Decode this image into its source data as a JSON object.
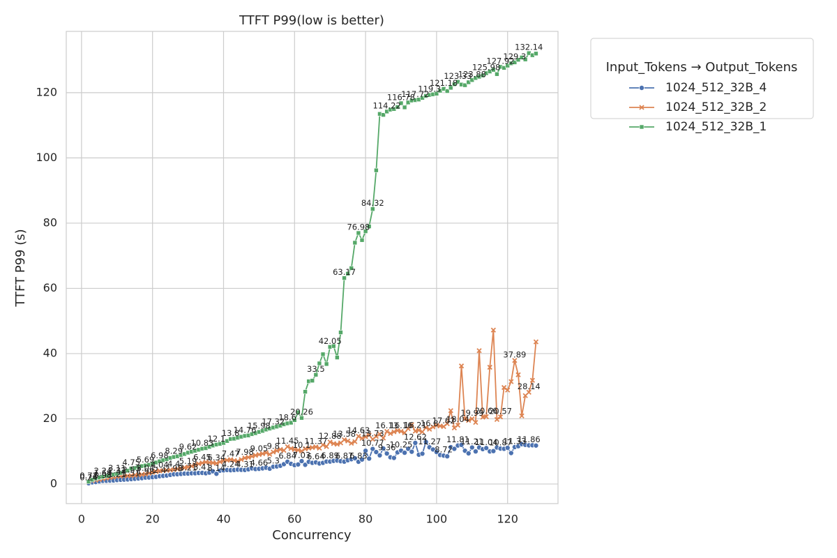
{
  "chart_data": {
    "type": "line",
    "title": "TTFT P99(low is better)",
    "x_label": "Concurrency",
    "y_label": "TTFT P99 (s)",
    "legend_title": "Input_Tokens → Output_Tokens",
    "legend_position": "outside upper right",
    "grid": true,
    "xlim": [
      -4.3,
      134.2
    ],
    "xticks": [
      0,
      20,
      40,
      60,
      80,
      100,
      120
    ],
    "ylim": [
      -6,
      138.8
    ],
    "yticks": [
      0,
      20,
      40,
      60,
      80,
      100,
      120
    ],
    "x": [
      2,
      3,
      4,
      5,
      6,
      7,
      8,
      9,
      10,
      11,
      12,
      13,
      14,
      15,
      16,
      17,
      18,
      19,
      20,
      21,
      22,
      23,
      24,
      25,
      26,
      27,
      28,
      29,
      30,
      31,
      32,
      33,
      34,
      35,
      36,
      37,
      38,
      39,
      40,
      41,
      42,
      43,
      44,
      45,
      46,
      47,
      48,
      49,
      50,
      51,
      52,
      53,
      54,
      55,
      56,
      57,
      58,
      59,
      60,
      61,
      62,
      63,
      64,
      65,
      66,
      67,
      68,
      69,
      70,
      71,
      72,
      73,
      74,
      75,
      76,
      77,
      78,
      79,
      80,
      81,
      82,
      83,
      84,
      85,
      86,
      87,
      88,
      89,
      90,
      91,
      92,
      93,
      94,
      95,
      96,
      97,
      98,
      99,
      100,
      101,
      102,
      103,
      104,
      105,
      106,
      107,
      108,
      109,
      110,
      111,
      112,
      113,
      114,
      115,
      116,
      117,
      118,
      119,
      120,
      121,
      122,
      123,
      124,
      125,
      126,
      127,
      128
    ],
    "series": [
      {
        "name": "1024_512_32B_4",
        "color": "#4c72b0",
        "marker": "circle",
        "values": [
          0.24,
          0.5,
          0.6,
          0.8,
          0.98,
          1.0,
          1.05,
          1.1,
          1.21,
          1.3,
          1.35,
          1.4,
          1.51,
          1.6,
          1.7,
          1.8,
          1.98,
          2.0,
          2.1,
          2.2,
          2.4,
          2.5,
          2.6,
          2.8,
          2.98,
          3.0,
          3.1,
          3.2,
          3.21,
          3.3,
          3.3,
          3.4,
          3.41,
          3.3,
          3.5,
          3.9,
          3.14,
          4.1,
          4.2,
          4.3,
          4.24,
          4.3,
          4.4,
          4.35,
          4.31,
          4.5,
          4.8,
          4.6,
          4.66,
          4.8,
          5.0,
          4.7,
          5.3,
          5.4,
          5.6,
          6.1,
          6.84,
          6.2,
          5.8,
          6.0,
          7.03,
          5.9,
          6.8,
          6.5,
          6.64,
          6.3,
          6.5,
          6.9,
          6.89,
          7.1,
          7.2,
          7.0,
          6.87,
          7.3,
          7.6,
          7.9,
          6.83,
          7.5,
          10.2,
          7.8,
          10.77,
          9.8,
          8.8,
          10.9,
          9.36,
          8.2,
          8.0,
          9.7,
          10.25,
          9.6,
          10.8,
          9.9,
          12.62,
          9.0,
          9.3,
          12.9,
          11.27,
          10.6,
          9.8,
          8.9,
          8.72,
          8.5,
          11.3,
          10.8,
          11.81,
          12.0,
          10.2,
          9.4,
          11.21,
          10.0,
          11.2,
          10.7,
          11.04,
          10.0,
          10.1,
          11.2,
          10.87,
          10.8,
          11.1,
          9.5,
          11.33,
          11.6,
          12.2,
          12.0,
          11.86,
          11.9,
          11.8
        ],
        "value_labels": [
          "0.24",
          null,
          null,
          null,
          "0.98",
          null,
          null,
          null,
          "1.21",
          null,
          null,
          null,
          "1.51",
          null,
          null,
          null,
          "1.98",
          null,
          null,
          null,
          "2.4",
          null,
          null,
          null,
          "2.98",
          null,
          null,
          null,
          "3.21",
          null,
          null,
          null,
          "3.41",
          null,
          null,
          null,
          "3.14",
          null,
          null,
          null,
          "4.24",
          null,
          null,
          null,
          "4.31",
          null,
          null,
          null,
          "4.66",
          null,
          null,
          null,
          "5.3",
          null,
          null,
          null,
          "6.84",
          null,
          null,
          null,
          "7.03",
          null,
          null,
          null,
          "6.64",
          null,
          null,
          null,
          "6.89",
          null,
          null,
          null,
          "6.87",
          null,
          null,
          null,
          "6.83",
          null,
          null,
          null,
          "10.77",
          null,
          null,
          null,
          "9.36",
          null,
          null,
          null,
          "10.25",
          null,
          null,
          null,
          "12.62",
          null,
          null,
          null,
          "11.27",
          null,
          null,
          null,
          "8.72",
          null,
          null,
          null,
          "11.81",
          null,
          null,
          null,
          "11.21",
          null,
          null,
          null,
          "11.04",
          null,
          null,
          null,
          "10.87",
          null,
          null,
          null,
          "11.33",
          null,
          null,
          null,
          "11.86",
          null,
          null
        ]
      },
      {
        "name": "1024_512_32B_2",
        "color": "#dd8452",
        "marker": "x",
        "values": [
          0.72,
          1.0,
          1.2,
          1.4,
          1.64,
          1.8,
          2.0,
          2.1,
          2.32,
          2.4,
          2.5,
          2.5,
          2.57,
          2.7,
          2.8,
          2.9,
          3.04,
          3.3,
          3.6,
          3.8,
          4.04,
          4.1,
          4.2,
          4.3,
          4.4,
          4.6,
          4.8,
          5.0,
          5.19,
          5.5,
          5.9,
          6.2,
          6.45,
          6.7,
          6.6,
          6.5,
          6.34,
          6.8,
          7.1,
          7.3,
          7.47,
          7.2,
          7.0,
          7.5,
          7.98,
          8.2,
          8.5,
          8.8,
          9.05,
          9.3,
          9.6,
          9.1,
          9.8,
          10.2,
          10.6,
          10.3,
          11.45,
          10.9,
          10.6,
          10.4,
          10.1,
          10.8,
          11.0,
          11.2,
          11.37,
          11.0,
          12.0,
          11.5,
          12.88,
          12.4,
          12.2,
          12.6,
          13.58,
          13.2,
          12.5,
          13.0,
          14.63,
          14.0,
          14.5,
          15.0,
          13.73,
          14.6,
          15.3,
          14.1,
          16.13,
          15.5,
          16.0,
          16.4,
          16.16,
          15.7,
          17.0,
          18.2,
          16.21,
          16.5,
          16.0,
          17.3,
          16.8,
          17.5,
          18.0,
          17.8,
          17.62,
          18.5,
          22.5,
          17.2,
          18.04,
          36.2,
          20.0,
          19.5,
          19.99,
          18.9,
          40.9,
          20.5,
          20.66,
          35.8,
          47.2,
          19.8,
          20.57,
          29.6,
          28.8,
          31.4,
          37.89,
          33.5,
          20.9,
          27.1,
          28.14,
          31.8,
          43.6
        ],
        "value_labels": [
          "0.72",
          null,
          null,
          null,
          "1.64",
          null,
          null,
          null,
          "2.32",
          null,
          null,
          null,
          "2.57",
          null,
          null,
          null,
          "3.04",
          null,
          null,
          null,
          "4.04",
          null,
          null,
          null,
          "4.4",
          null,
          null,
          null,
          "5.19",
          null,
          null,
          null,
          "6.45",
          null,
          null,
          null,
          "6.34",
          null,
          null,
          null,
          "7.47",
          null,
          null,
          null,
          "7.98",
          null,
          null,
          null,
          "9.05",
          null,
          null,
          null,
          "9.8",
          null,
          null,
          null,
          "11.45",
          null,
          null,
          null,
          "10.1",
          null,
          null,
          null,
          "11.37",
          null,
          null,
          null,
          "12.88",
          null,
          null,
          null,
          "13.58",
          null,
          null,
          null,
          "14.63",
          null,
          null,
          null,
          "13.73",
          null,
          null,
          null,
          "16.13",
          null,
          null,
          null,
          "16.16",
          null,
          null,
          null,
          "16.21",
          null,
          null,
          null,
          "16.8",
          null,
          null,
          null,
          "17.62",
          null,
          null,
          null,
          "18.04",
          null,
          null,
          null,
          "19.99",
          null,
          null,
          null,
          "20.66",
          null,
          null,
          null,
          "20.57",
          null,
          null,
          null,
          "37.89",
          null,
          null,
          null,
          "28.14",
          null,
          null
        ]
      },
      {
        "name": "1024_512_32B_1",
        "color": "#55a868",
        "marker": "square",
        "values": [
          0.74,
          1.3,
          1.7,
          2.0,
          2.24,
          2.5,
          2.7,
          2.9,
          3.11,
          3.4,
          3.8,
          4.1,
          4.75,
          4.9,
          5.2,
          5.5,
          5.69,
          5.9,
          6.3,
          6.6,
          6.98,
          7.3,
          7.6,
          8.0,
          8.29,
          8.5,
          8.9,
          9.2,
          9.62,
          9.9,
          10.2,
          10.5,
          10.83,
          11.0,
          11.4,
          11.8,
          12.1,
          12.3,
          12.6,
          13.2,
          13.8,
          13.9,
          14.2,
          14.5,
          14.76,
          14.9,
          15.3,
          15.6,
          15.98,
          16.3,
          16.7,
          17.0,
          17.32,
          17.6,
          17.9,
          18.3,
          18.6,
          18.8,
          19.6,
          22.0,
          20.26,
          28.3,
          31.5,
          31.7,
          33.5,
          37.0,
          39.8,
          36.8,
          42.05,
          42.3,
          38.8,
          46.5,
          63.17,
          64.5,
          66.2,
          74.0,
          76.98,
          74.8,
          77.5,
          79.0,
          84.32,
          96.2,
          113.5,
          113.2,
          114.22,
          114.8,
          115.0,
          115.6,
          116.78,
          115.5,
          117.0,
          117.6,
          117.72,
          117.9,
          118.4,
          119.0,
          119.3,
          119.5,
          119.7,
          120.6,
          121.18,
          120.5,
          121.5,
          122.6,
          123.33,
          122.5,
          122.3,
          123.2,
          123.88,
          124.5,
          124.9,
          125.3,
          125.98,
          126.5,
          127.0,
          125.7,
          127.92,
          127.6,
          128.3,
          129.0,
          129.3,
          130.1,
          130.8,
          130.2,
          132.14,
          131.5,
          132.0
        ],
        "value_labels": [
          "0.74",
          null,
          null,
          null,
          "2.24",
          null,
          null,
          null,
          "3.11",
          null,
          null,
          null,
          "4.75",
          null,
          null,
          null,
          "5.69",
          null,
          null,
          null,
          "6.98",
          null,
          null,
          null,
          "8.29",
          null,
          null,
          null,
          "9.62",
          null,
          null,
          null,
          "10.83",
          null,
          null,
          null,
          "12.1",
          null,
          null,
          null,
          "13.8",
          null,
          null,
          null,
          "14.76",
          null,
          null,
          null,
          "15.98",
          null,
          null,
          null,
          "17.32",
          null,
          null,
          null,
          "18.6",
          null,
          null,
          null,
          "20.26",
          null,
          null,
          null,
          "33.5",
          null,
          null,
          null,
          "42.05",
          null,
          null,
          null,
          "63.17",
          null,
          null,
          null,
          "76.98",
          null,
          null,
          null,
          "84.32",
          null,
          null,
          null,
          "114.22",
          null,
          null,
          null,
          "116.78",
          null,
          null,
          null,
          "117.72",
          null,
          null,
          null,
          "119.3",
          null,
          null,
          null,
          "121.18",
          null,
          null,
          null,
          "123.33",
          null,
          null,
          null,
          "123.88",
          null,
          null,
          null,
          "125.98",
          null,
          null,
          null,
          "127.92",
          null,
          null,
          null,
          "129.3",
          null,
          null,
          null,
          "132.14",
          null,
          null
        ]
      }
    ]
  }
}
